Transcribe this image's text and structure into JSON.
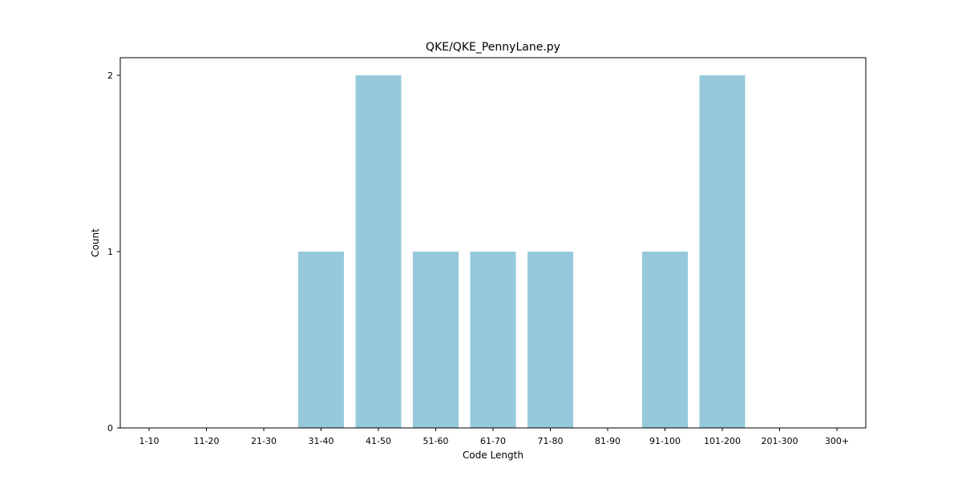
{
  "chart_data": {
    "type": "bar",
    "title": "QKE/QKE_PennyLane.py",
    "xlabel": "Code Length",
    "ylabel": "Count",
    "categories": [
      "1-10",
      "11-20",
      "21-30",
      "31-40",
      "41-50",
      "51-60",
      "61-70",
      "71-80",
      "81-90",
      "91-100",
      "101-200",
      "201-300",
      "300+"
    ],
    "values": [
      0,
      0,
      0,
      1,
      2,
      1,
      1,
      1,
      0,
      1,
      2,
      0,
      0
    ],
    "ylim": [
      0,
      2.1
    ],
    "yticks": [
      0,
      1,
      2
    ],
    "grid": false,
    "bar_color": "#96c9dc"
  }
}
